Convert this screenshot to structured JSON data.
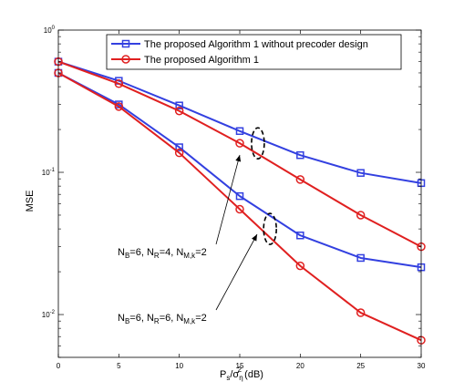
{
  "chart_data": {
    "type": "line",
    "x": [
      0,
      5,
      10,
      15,
      20,
      25,
      30
    ],
    "xlim": [
      0,
      30
    ],
    "ylim": [
      0.005,
      1
    ],
    "yscale": "log",
    "xticks": [
      "0",
      "5",
      "10",
      "15",
      "20",
      "25",
      "30"
    ],
    "yticks": [
      {
        "value": 1,
        "base": "10",
        "exp": "0"
      },
      {
        "value": 0.1,
        "base": "10",
        "exp": "-1"
      },
      {
        "value": 0.01,
        "base": "10",
        "exp": "-2"
      }
    ],
    "ylabel": "MSE",
    "xlabel": {
      "P": "P",
      "s": "s",
      "slash": "/σ",
      "eta": "η",
      "two": "2",
      "unit": " (dB)"
    },
    "grid": false,
    "legend_position": "top-right",
    "series": [
      {
        "name": "The proposed Algorithm 1 without precoder design",
        "group": "NR4",
        "color": "#3340e0",
        "marker": "square",
        "values": [
          0.6,
          0.44,
          0.295,
          0.195,
          0.132,
          0.099,
          0.084
        ]
      },
      {
        "name": "The proposed Algorithm 1",
        "group": "NR4",
        "color": "#e02020",
        "marker": "circle",
        "values": [
          0.6,
          0.42,
          0.27,
          0.16,
          0.089,
          0.05,
          0.03
        ]
      },
      {
        "name": "The proposed Algorithm 1 without precoder design",
        "group": "NR6",
        "color": "#3340e0",
        "marker": "square",
        "values": [
          0.5,
          0.3,
          0.15,
          0.068,
          0.036,
          0.025,
          0.0215
        ]
      },
      {
        "name": "The proposed Algorithm 1",
        "group": "NR6",
        "color": "#e02020",
        "marker": "circle",
        "values": [
          0.5,
          0.29,
          0.137,
          0.055,
          0.022,
          0.0103,
          0.0066
        ]
      }
    ],
    "annotations": [
      {
        "id": "nr4",
        "parts": [
          "N",
          "B",
          "=6, N",
          "R",
          "=4, N",
          "M,k",
          "=2"
        ],
        "at_x": 16.5,
        "at_y": 0.16
      },
      {
        "id": "nr6",
        "parts": [
          "N",
          "B",
          "=6, N",
          "R",
          "=6, N",
          "M,k",
          "=2"
        ],
        "at_x": 17.5,
        "at_y": 0.04
      }
    ]
  }
}
